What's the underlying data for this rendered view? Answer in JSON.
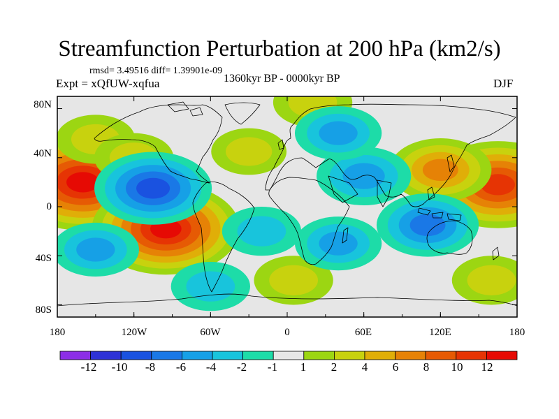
{
  "title": "Streamfunction Perturbation at 200 hPa (km2/s)",
  "stats": "rmsd= 3.49516 diff= 1.39901e-09",
  "experiment": "Expt = xQfUW-xqfua",
  "period": "1360kyr BP - 0000kyr BP",
  "season": "DJF",
  "map": {
    "lat_ticks": [
      "80N",
      "40N",
      "0",
      "40S",
      "80S"
    ],
    "lon_ticks": [
      "180",
      "120W",
      "60W",
      "0",
      "60E",
      "120E",
      "180"
    ],
    "lat_range": [
      -90,
      90
    ],
    "lon_range": [
      -180,
      180
    ],
    "background_color": "#e6e6e6"
  },
  "colorbar": {
    "labels": [
      "-12",
      "-10",
      "-8",
      "-6",
      "-4",
      "-2",
      "-1",
      "1",
      "2",
      "4",
      "6",
      "8",
      "10",
      "12"
    ],
    "levels": [
      -14,
      -12,
      -10,
      -8,
      -6,
      -4,
      -2,
      -1,
      1,
      2,
      4,
      6,
      8,
      10,
      12,
      14
    ],
    "colors": [
      "#8c2ee6",
      "#2e32d6",
      "#1a52e0",
      "#1a78e6",
      "#16a0e6",
      "#18c4dc",
      "#1ddca8",
      "#e6e6e6",
      "#9cd612",
      "#c8d20e",
      "#e0ae08",
      "#e68206",
      "#e65a04",
      "#e63404",
      "#e60a04"
    ]
  },
  "anomalies": [
    {
      "lon": -160,
      "lat": 20,
      "value": 13
    },
    {
      "lon": -95,
      "lat": -18,
      "value": 12
    },
    {
      "lon": 165,
      "lat": 18,
      "value": 11
    },
    {
      "lon": 120,
      "lat": 30,
      "value": 6
    },
    {
      "lon": -150,
      "lat": 55,
      "value": 3
    },
    {
      "lon": -120,
      "lat": 40,
      "value": 3
    },
    {
      "lon": -30,
      "lat": 45,
      "value": 2.5
    },
    {
      "lon": 5,
      "lat": -60,
      "value": 3
    },
    {
      "lon": 160,
      "lat": -60,
      "value": 3
    },
    {
      "lon": 20,
      "lat": 85,
      "value": 3
    },
    {
      "lon": -105,
      "lat": 15,
      "value": -8
    },
    {
      "lon": -150,
      "lat": -35,
      "value": -4
    },
    {
      "lon": 60,
      "lat": 25,
      "value": -5
    },
    {
      "lon": 110,
      "lat": -15,
      "value": -6
    },
    {
      "lon": 40,
      "lat": -30,
      "value": -4
    },
    {
      "lon": 40,
      "lat": 60,
      "value": -4
    },
    {
      "lon": -60,
      "lat": -65,
      "value": -3
    },
    {
      "lon": -20,
      "lat": -20,
      "value": -3
    }
  ]
}
